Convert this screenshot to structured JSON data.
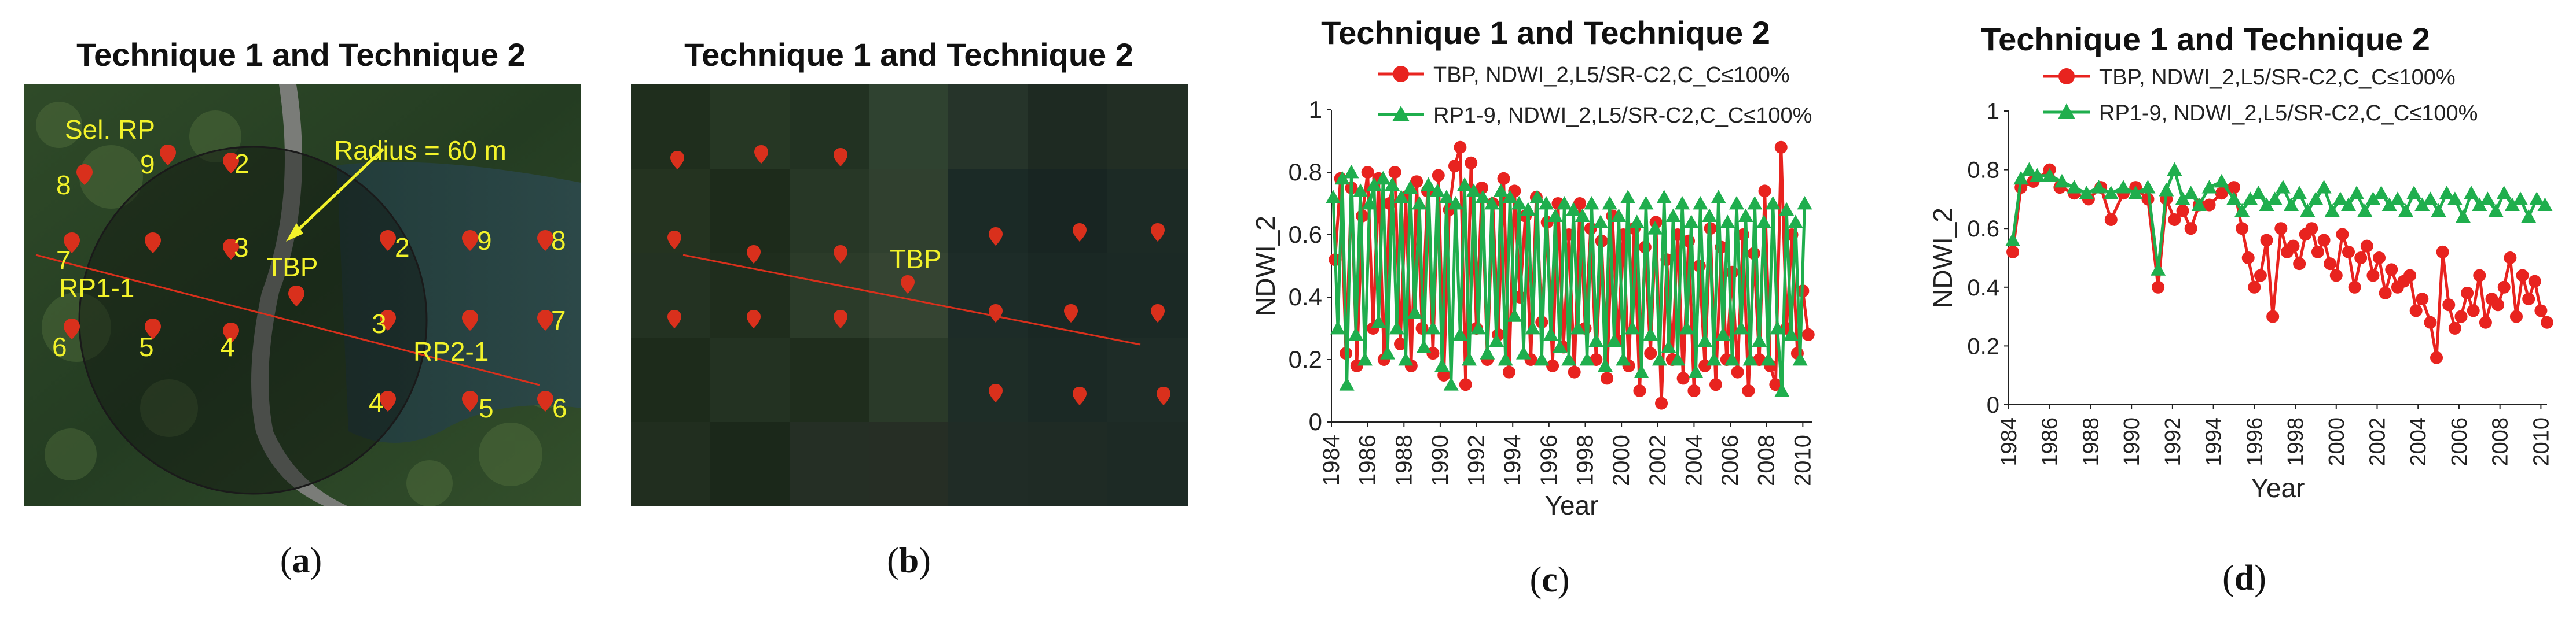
{
  "panels": {
    "a": {
      "title": "Technique 1 and Technique 2",
      "caption": "a",
      "labels": {
        "sel_rp": "Sel. RP",
        "radius": "Radius = 60 m",
        "tbp": "TBP",
        "rp1": "RP1-1",
        "rp2": "RP2-1"
      },
      "numbers": [
        "9",
        "2",
        "8",
        "7",
        "3",
        "2",
        "9",
        "8",
        "6",
        "5",
        "4",
        "3",
        "7",
        "4",
        "5",
        "6"
      ]
    },
    "b": {
      "title": "Technique 1 and Technique 2",
      "caption": "b",
      "tbp": "TBP"
    },
    "c": {
      "title": "Technique 1 and Technique 2",
      "caption": "c"
    },
    "d": {
      "title": "Technique 1 and Technique 2",
      "caption": "d"
    }
  },
  "colors": {
    "tbp": "#e8231f",
    "rp": "#1fae4d",
    "label_yellow": "#f2f22a",
    "pin": "#d9301c"
  },
  "chart_data": [
    {
      "id": "c",
      "type": "line",
      "title": "Technique 1 and Technique 2",
      "xlabel": "Year",
      "ylabel": "NDWI_2",
      "xlim": [
        1984,
        2010.5
      ],
      "ylim": [
        0,
        1
      ],
      "xticks": [
        "1984",
        "1986",
        "1988",
        "1990",
        "1992",
        "1994",
        "1996",
        "1998",
        "2000",
        "2002",
        "2004",
        "2006",
        "2008",
        "2010"
      ],
      "yticks": [
        "0",
        "0.2",
        "0.4",
        "0.6",
        "0.8",
        "1"
      ],
      "legend": "top-center",
      "series": [
        {
          "name": "TBP, NDWI_2,L5/SR-C2,C_C≤100%",
          "marker": "circle",
          "x": [
            1984.2,
            1984.5,
            1984.8,
            1985.1,
            1985.4,
            1985.7,
            1986.0,
            1986.3,
            1986.6,
            1986.9,
            1987.2,
            1987.5,
            1987.8,
            1988.1,
            1988.4,
            1988.7,
            1989.0,
            1989.3,
            1989.6,
            1989.9,
            1990.2,
            1990.5,
            1990.8,
            1991.1,
            1991.4,
            1991.7,
            1992.0,
            1992.3,
            1992.6,
            1992.9,
            1993.2,
            1993.5,
            1993.8,
            1994.1,
            1994.4,
            1994.7,
            1995.0,
            1995.3,
            1995.6,
            1995.9,
            1996.2,
            1996.5,
            1996.8,
            1997.1,
            1997.4,
            1997.7,
            1998.0,
            1998.3,
            1998.6,
            1998.9,
            1999.2,
            1999.5,
            1999.8,
            2000.1,
            2000.4,
            2000.7,
            2001.0,
            2001.3,
            2001.6,
            2001.9,
            2002.2,
            2002.5,
            2002.8,
            2003.1,
            2003.4,
            2003.7,
            2004.0,
            2004.3,
            2004.6,
            2004.9,
            2005.2,
            2005.5,
            2005.8,
            2006.1,
            2006.4,
            2006.7,
            2007.0,
            2007.3,
            2007.6,
            2007.9,
            2008.2,
            2008.5,
            2008.8,
            2009.1,
            2009.4,
            2009.7,
            2010.0,
            2010.3
          ],
          "y": [
            0.52,
            0.78,
            0.22,
            0.75,
            0.18,
            0.66,
            0.8,
            0.3,
            0.78,
            0.2,
            0.7,
            0.8,
            0.25,
            0.72,
            0.18,
            0.77,
            0.3,
            0.74,
            0.22,
            0.79,
            0.15,
            0.68,
            0.82,
            0.88,
            0.12,
            0.83,
            0.3,
            0.75,
            0.2,
            0.7,
            0.28,
            0.78,
            0.16,
            0.74,
            0.4,
            0.66,
            0.2,
            0.72,
            0.32,
            0.64,
            0.18,
            0.7,
            0.24,
            0.6,
            0.16,
            0.7,
            0.3,
            0.62,
            0.2,
            0.58,
            0.14,
            0.66,
            0.26,
            0.6,
            0.18,
            0.62,
            0.1,
            0.56,
            0.22,
            0.64,
            0.06,
            0.52,
            0.2,
            0.6,
            0.14,
            0.58,
            0.1,
            0.5,
            0.18,
            0.62,
            0.12,
            0.56,
            0.2,
            0.48,
            0.16,
            0.6,
            0.1,
            0.54,
            0.2,
            0.74,
            0.18,
            0.12,
            0.88,
            0.3,
            0.6,
            0.22,
            0.42,
            0.28
          ]
        },
        {
          "name": "RP1-9, NDWI_2,L5/SR-C2,C_C≤100%",
          "marker": "triangle",
          "x": [
            1984.1,
            1984.35,
            1984.6,
            1984.85,
            1985.1,
            1985.35,
            1985.6,
            1985.85,
            1986.1,
            1986.35,
            1986.6,
            1986.85,
            1987.1,
            1987.35,
            1987.6,
            1987.85,
            1988.1,
            1988.35,
            1988.6,
            1988.85,
            1989.1,
            1989.35,
            1989.6,
            1989.85,
            1990.1,
            1990.35,
            1990.6,
            1990.85,
            1991.1,
            1991.35,
            1991.6,
            1991.85,
            1992.1,
            1992.35,
            1992.6,
            1992.85,
            1993.1,
            1993.35,
            1993.6,
            1993.85,
            1994.1,
            1994.35,
            1994.6,
            1994.85,
            1995.1,
            1995.35,
            1995.6,
            1995.85,
            1996.1,
            1996.35,
            1996.6,
            1996.85,
            1997.1,
            1997.35,
            1997.6,
            1997.85,
            1998.1,
            1998.35,
            1998.6,
            1998.85,
            1999.1,
            1999.35,
            1999.6,
            1999.85,
            2000.1,
            2000.35,
            2000.6,
            2000.85,
            2001.1,
            2001.35,
            2001.6,
            2001.85,
            2002.1,
            2002.35,
            2002.6,
            2002.85,
            2003.1,
            2003.35,
            2003.6,
            2003.85,
            2004.1,
            2004.35,
            2004.6,
            2004.85,
            2005.1,
            2005.35,
            2005.6,
            2005.85,
            2006.1,
            2006.35,
            2006.6,
            2006.85,
            2007.1,
            2007.35,
            2007.6,
            2007.85,
            2008.1,
            2008.35,
            2008.6,
            2008.85,
            2009.1,
            2009.35,
            2009.6,
            2009.85,
            2010.1
          ],
          "y": [
            0.72,
            0.3,
            0.78,
            0.12,
            0.8,
            0.28,
            0.74,
            0.2,
            0.7,
            0.76,
            0.32,
            0.78,
            0.22,
            0.76,
            0.3,
            0.72,
            0.2,
            0.75,
            0.35,
            0.7,
            0.24,
            0.76,
            0.3,
            0.74,
            0.18,
            0.72,
            0.12,
            0.7,
            0.28,
            0.76,
            0.2,
            0.74,
            0.3,
            0.72,
            0.22,
            0.7,
            0.26,
            0.74,
            0.2,
            0.72,
            0.34,
            0.7,
            0.22,
            0.68,
            0.3,
            0.72,
            0.2,
            0.7,
            0.28,
            0.66,
            0.24,
            0.7,
            0.2,
            0.68,
            0.3,
            0.66,
            0.2,
            0.7,
            0.26,
            0.64,
            0.18,
            0.7,
            0.26,
            0.66,
            0.2,
            0.72,
            0.3,
            0.64,
            0.16,
            0.7,
            0.28,
            0.62,
            0.2,
            0.72,
            0.24,
            0.66,
            0.2,
            0.7,
            0.3,
            0.64,
            0.16,
            0.7,
            0.26,
            0.66,
            0.2,
            0.72,
            0.28,
            0.64,
            0.2,
            0.7,
            0.3,
            0.66,
            0.2,
            0.7,
            0.26,
            0.64,
            0.2,
            0.7,
            0.3,
            0.1,
            0.68,
            0.28,
            0.64,
            0.2,
            0.7
          ]
        }
      ]
    },
    {
      "id": "d",
      "type": "line",
      "title": "Technique 1 and Technique 2",
      "xlabel": "Year",
      "ylabel": "NDWI_2",
      "xlim": [
        1984,
        2010.3
      ],
      "ylim": [
        0,
        1
      ],
      "xticks": [
        "1984",
        "1986",
        "1988",
        "1990",
        "1992",
        "1994",
        "1996",
        "1998",
        "2000",
        "2002",
        "2004",
        "2006",
        "2008",
        "2010"
      ],
      "yticks": [
        "0",
        "0.2",
        "0.4",
        "0.6",
        "0.8",
        "1"
      ],
      "legend": "top-center",
      "series": [
        {
          "name": "TBP, NDWI_2,L5/SR-C2,C_C≤100%",
          "marker": "circle",
          "x": [
            1984.2,
            1984.6,
            1985.2,
            1986.0,
            1986.5,
            1987.2,
            1987.9,
            1988.5,
            1989.0,
            1989.6,
            1990.2,
            1990.8,
            1991.3,
            1991.7,
            1992.1,
            1992.5,
            1992.9,
            1993.3,
            1993.8,
            1994.4,
            1995.0,
            1995.4,
            1995.7,
            1996.0,
            1996.3,
            1996.6,
            1996.9,
            1997.3,
            1997.6,
            1997.9,
            1998.2,
            1998.5,
            1998.8,
            1999.1,
            1999.4,
            1999.7,
            2000.0,
            2000.3,
            2000.6,
            2000.9,
            2001.2,
            2001.5,
            2001.8,
            2002.1,
            2002.4,
            2002.7,
            2003.0,
            2003.3,
            2003.6,
            2003.9,
            2004.2,
            2004.6,
            2004.9,
            2005.2,
            2005.5,
            2005.8,
            2006.1,
            2006.4,
            2006.7,
            2007.0,
            2007.3,
            2007.6,
            2007.9,
            2008.2,
            2008.5,
            2008.8,
            2009.1,
            2009.4,
            2009.7,
            2010.0,
            2010.3
          ],
          "y": [
            0.52,
            0.74,
            0.76,
            0.8,
            0.74,
            0.72,
            0.7,
            0.74,
            0.63,
            0.72,
            0.74,
            0.7,
            0.4,
            0.7,
            0.63,
            0.66,
            0.6,
            0.68,
            0.68,
            0.72,
            0.74,
            0.6,
            0.5,
            0.4,
            0.44,
            0.56,
            0.3,
            0.6,
            0.52,
            0.54,
            0.48,
            0.58,
            0.6,
            0.52,
            0.56,
            0.48,
            0.44,
            0.58,
            0.52,
            0.4,
            0.5,
            0.54,
            0.44,
            0.5,
            0.38,
            0.46,
            0.4,
            0.42,
            0.44,
            0.32,
            0.36,
            0.28,
            0.16,
            0.52,
            0.34,
            0.26,
            0.3,
            0.38,
            0.32,
            0.44,
            0.28,
            0.36,
            0.34,
            0.4,
            0.5,
            0.3,
            0.44,
            0.36,
            0.42,
            0.32,
            0.28
          ]
        },
        {
          "name": "RP1-9, NDWI_2,L5/SR-C2,C_C≤100%",
          "marker": "triangle",
          "x": [
            1984.2,
            1984.6,
            1985.0,
            1985.4,
            1986.0,
            1986.6,
            1987.2,
            1987.8,
            1988.4,
            1989.0,
            1989.6,
            1990.2,
            1990.8,
            1991.3,
            1991.7,
            1992.1,
            1992.5,
            1992.9,
            1993.3,
            1993.8,
            1994.4,
            1995.0,
            1995.4,
            1995.8,
            1996.2,
            1996.6,
            1997.0,
            1997.4,
            1997.8,
            1998.2,
            1998.6,
            1999.0,
            1999.4,
            1999.8,
            2000.2,
            2000.6,
            2001.0,
            2001.4,
            2001.8,
            2002.2,
            2002.6,
            2003.0,
            2003.4,
            2003.8,
            2004.2,
            2004.6,
            2005.0,
            2005.4,
            2005.8,
            2006.2,
            2006.6,
            2007.0,
            2007.4,
            2007.8,
            2008.2,
            2008.6,
            2009.0,
            2009.4,
            2009.8,
            2010.2
          ],
          "y": [
            0.56,
            0.77,
            0.8,
            0.78,
            0.78,
            0.76,
            0.74,
            0.72,
            0.74,
            0.72,
            0.74,
            0.72,
            0.74,
            0.46,
            0.73,
            0.8,
            0.7,
            0.72,
            0.68,
            0.74,
            0.76,
            0.7,
            0.66,
            0.7,
            0.72,
            0.68,
            0.7,
            0.74,
            0.68,
            0.72,
            0.66,
            0.7,
            0.74,
            0.66,
            0.7,
            0.68,
            0.72,
            0.66,
            0.7,
            0.72,
            0.68,
            0.7,
            0.66,
            0.72,
            0.68,
            0.7,
            0.66,
            0.72,
            0.7,
            0.64,
            0.72,
            0.68,
            0.7,
            0.66,
            0.72,
            0.68,
            0.7,
            0.64,
            0.7,
            0.68
          ]
        }
      ]
    }
  ]
}
